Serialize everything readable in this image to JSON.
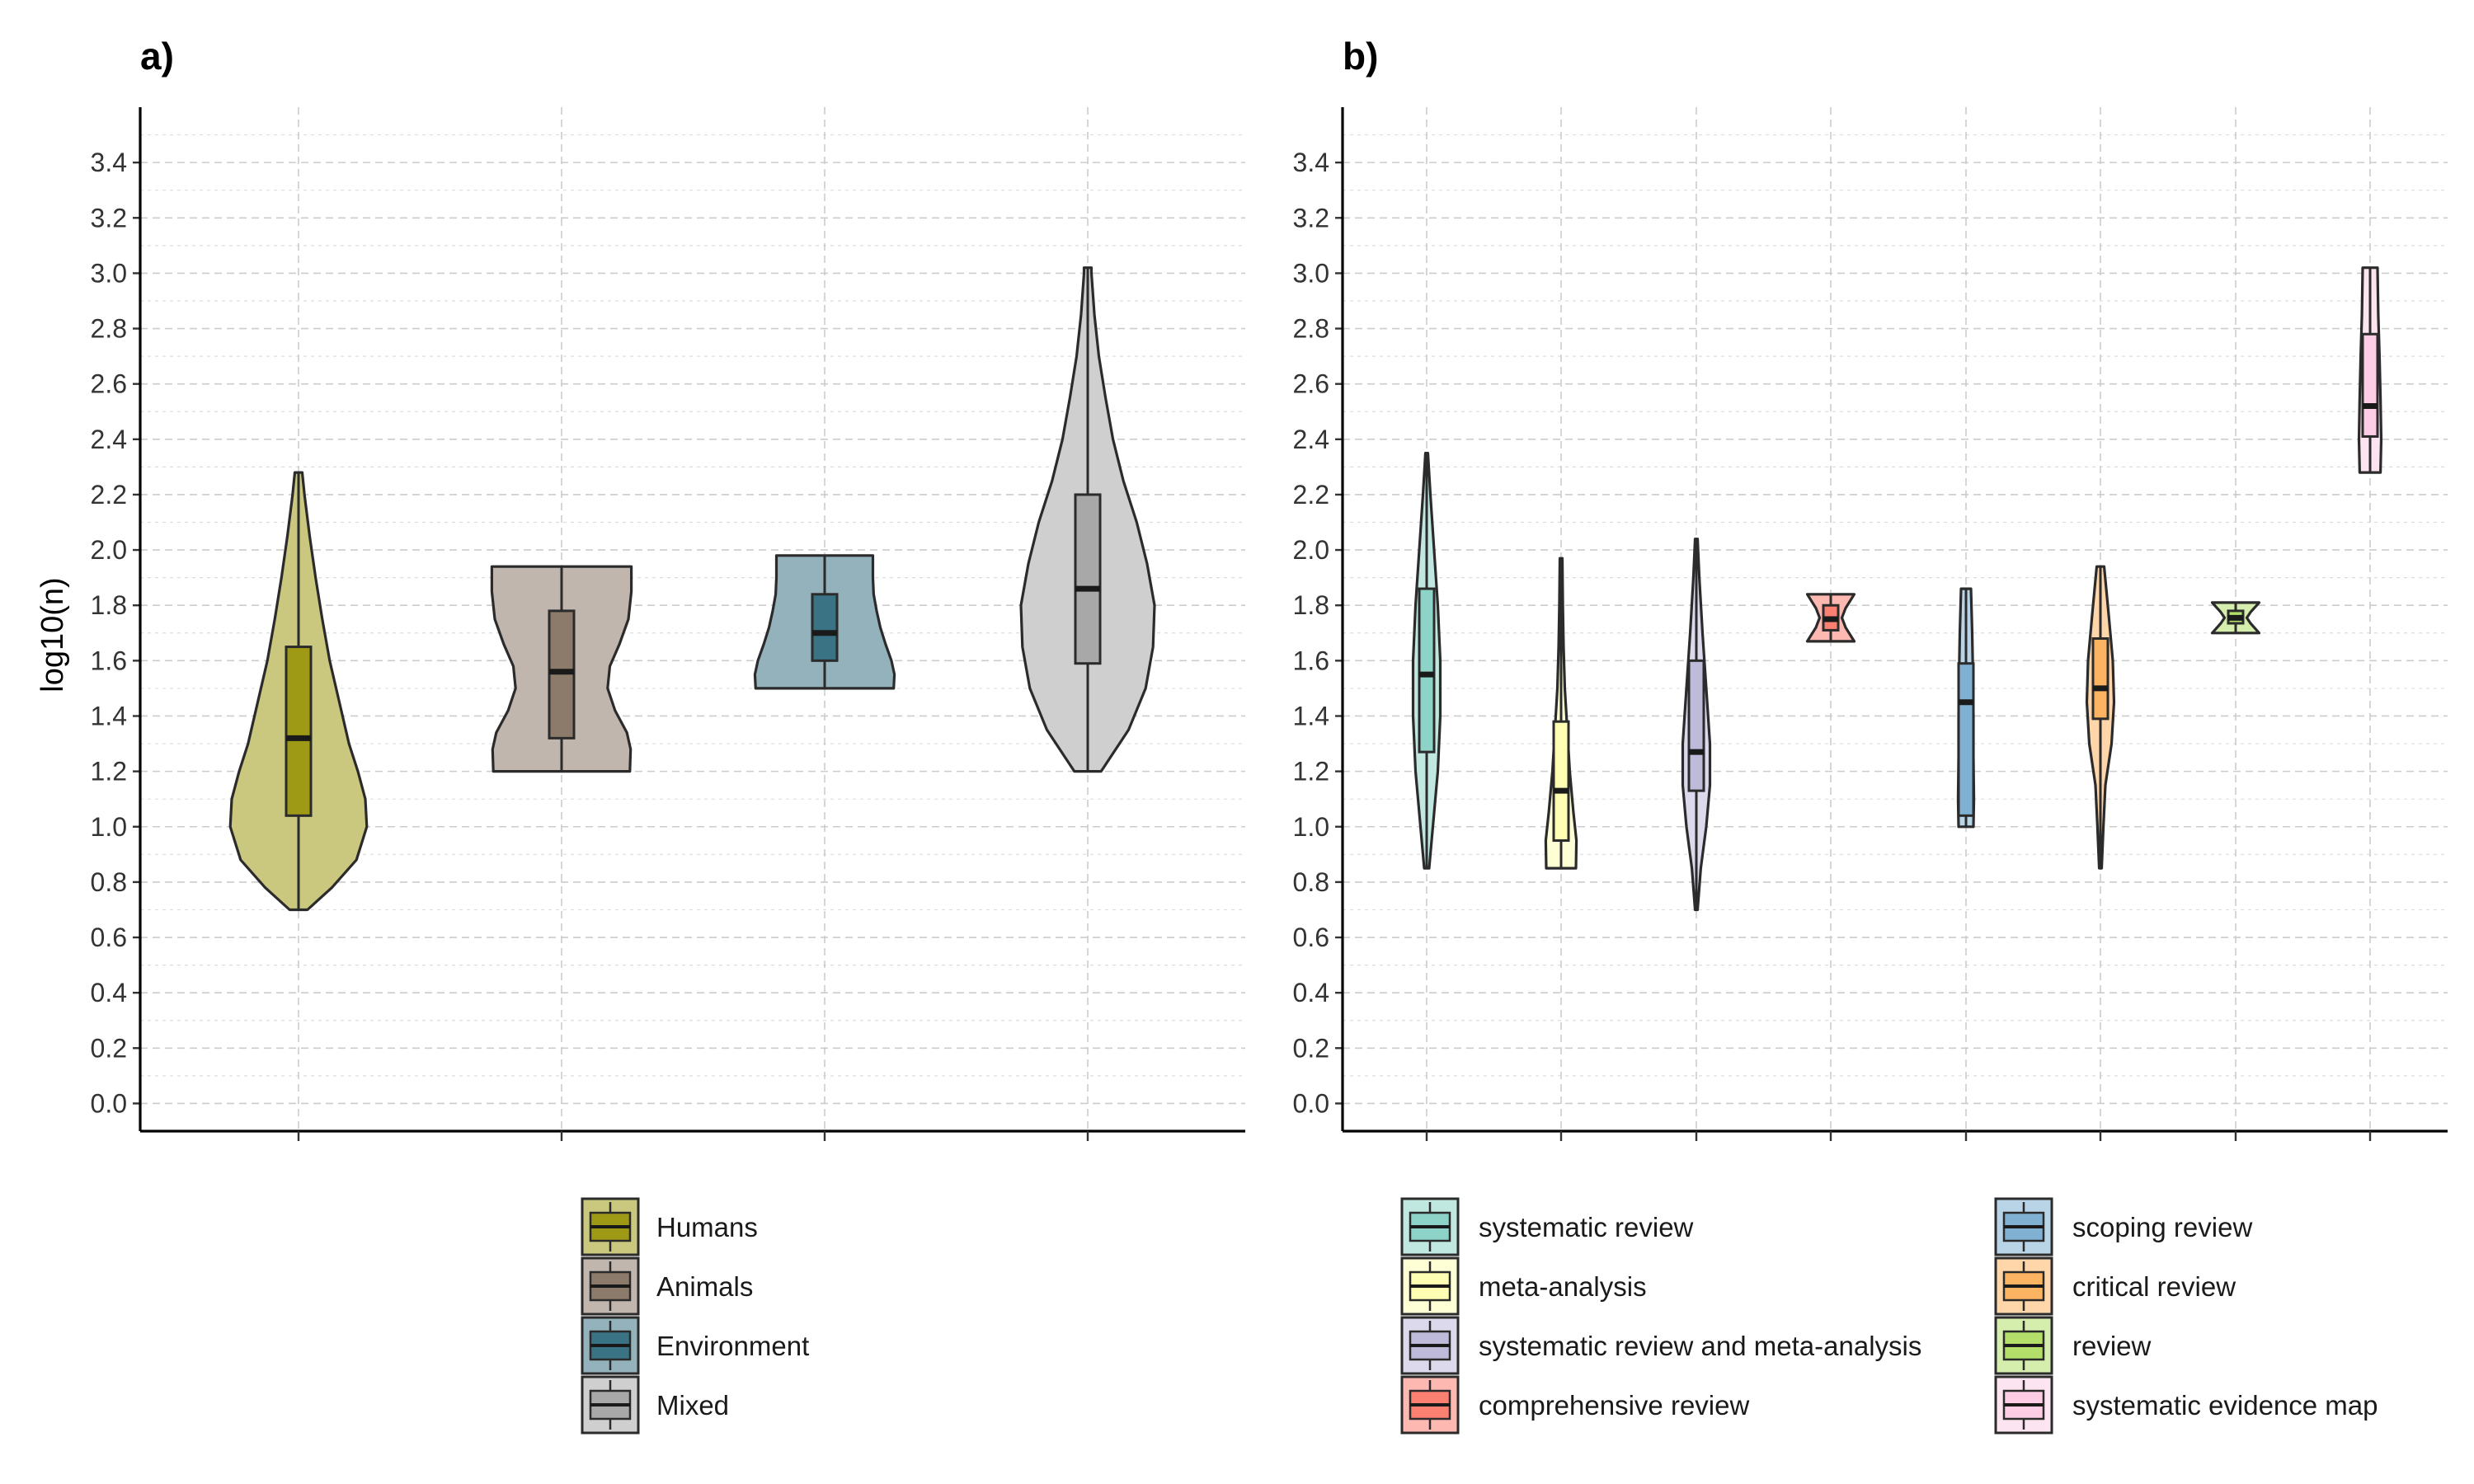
{
  "chart_data": [
    {
      "type": "violin",
      "panel_label": "a)",
      "ylabel": "log10(n)",
      "ylim": [
        -0.1,
        3.6
      ],
      "yticks": [
        "0.0",
        "0.2",
        "0.4",
        "0.6",
        "0.8",
        "1.0",
        "1.2",
        "1.4",
        "1.6",
        "1.8",
        "2.0",
        "2.2",
        "2.4",
        "2.6",
        "2.8",
        "3.0",
        "3.2",
        "3.4"
      ],
      "grid": true,
      "legend_position": "bottom",
      "series": [
        {
          "name": "Humans",
          "color": "#9E9A16",
          "min": 0.7,
          "q1": 1.04,
          "median": 1.32,
          "q3": 1.65,
          "max": 2.28,
          "density": [
            [
              0.7,
              0.12
            ],
            [
              0.78,
              0.45
            ],
            [
              0.88,
              0.78
            ],
            [
              1.0,
              0.92
            ],
            [
              1.1,
              0.9
            ],
            [
              1.2,
              0.8
            ],
            [
              1.3,
              0.68
            ],
            [
              1.45,
              0.55
            ],
            [
              1.6,
              0.42
            ],
            [
              1.75,
              0.32
            ],
            [
              1.9,
              0.23
            ],
            [
              2.05,
              0.15
            ],
            [
              2.2,
              0.08
            ],
            [
              2.28,
              0.05
            ]
          ]
        },
        {
          "name": "Animals",
          "color": "#8C7B6B",
          "min": 1.2,
          "q1": 1.32,
          "median": 1.56,
          "q3": 1.78,
          "max": 1.94,
          "density": [
            [
              1.2,
              0.92
            ],
            [
              1.28,
              0.93
            ],
            [
              1.34,
              0.88
            ],
            [
              1.42,
              0.72
            ],
            [
              1.5,
              0.62
            ],
            [
              1.58,
              0.65
            ],
            [
              1.66,
              0.78
            ],
            [
              1.75,
              0.9
            ],
            [
              1.85,
              0.94
            ],
            [
              1.94,
              0.94
            ]
          ]
        },
        {
          "name": "Environment",
          "color": "#3A7384",
          "min": 1.5,
          "q1": 1.6,
          "median": 1.7,
          "q3": 1.84,
          "max": 1.98,
          "density": [
            [
              1.5,
              0.93
            ],
            [
              1.55,
              0.94
            ],
            [
              1.6,
              0.9
            ],
            [
              1.66,
              0.82
            ],
            [
              1.72,
              0.75
            ],
            [
              1.78,
              0.7
            ],
            [
              1.84,
              0.66
            ],
            [
              1.9,
              0.65
            ],
            [
              1.96,
              0.65
            ],
            [
              1.98,
              0.65
            ]
          ]
        },
        {
          "name": "Mixed",
          "color": "#A8A8A8",
          "min": 1.2,
          "q1": 1.59,
          "median": 1.86,
          "q3": 2.2,
          "max": 3.02,
          "density": [
            [
              1.2,
              0.18
            ],
            [
              1.35,
              0.55
            ],
            [
              1.5,
              0.78
            ],
            [
              1.65,
              0.88
            ],
            [
              1.8,
              0.9
            ],
            [
              1.95,
              0.8
            ],
            [
              2.1,
              0.66
            ],
            [
              2.25,
              0.48
            ],
            [
              2.4,
              0.34
            ],
            [
              2.55,
              0.24
            ],
            [
              2.7,
              0.15
            ],
            [
              2.85,
              0.09
            ],
            [
              3.0,
              0.05
            ],
            [
              3.02,
              0.05
            ]
          ]
        }
      ]
    },
    {
      "type": "violin",
      "panel_label": "b)",
      "ylim": [
        -0.1,
        3.6
      ],
      "yticks": [
        "0.0",
        "0.2",
        "0.4",
        "0.6",
        "0.8",
        "1.0",
        "1.2",
        "1.4",
        "1.6",
        "1.8",
        "2.0",
        "2.2",
        "2.4",
        "2.6",
        "2.8",
        "3.0",
        "3.2",
        "3.4"
      ],
      "grid": true,
      "legend_position": "bottom",
      "series": [
        {
          "name": "systematic review",
          "color": "#8DD3C7",
          "min": 0.85,
          "q1": 1.27,
          "median": 1.55,
          "q3": 1.86,
          "max": 2.35,
          "density": [
            [
              0.85,
              0.1
            ],
            [
              1.0,
              0.25
            ],
            [
              1.2,
              0.45
            ],
            [
              1.4,
              0.55
            ],
            [
              1.6,
              0.55
            ],
            [
              1.8,
              0.45
            ],
            [
              2.0,
              0.3
            ],
            [
              2.2,
              0.15
            ],
            [
              2.35,
              0.05
            ]
          ]
        },
        {
          "name": "meta-analysis",
          "color": "#FFFFB3",
          "min": 0.85,
          "q1": 0.95,
          "median": 1.13,
          "q3": 1.38,
          "max": 1.97,
          "density": [
            [
              0.85,
              0.6
            ],
            [
              0.95,
              0.62
            ],
            [
              1.05,
              0.5
            ],
            [
              1.2,
              0.35
            ],
            [
              1.35,
              0.25
            ],
            [
              1.5,
              0.15
            ],
            [
              1.65,
              0.1
            ],
            [
              1.8,
              0.07
            ],
            [
              1.97,
              0.05
            ]
          ]
        },
        {
          "name": "systematic review and meta-analysis",
          "color": "#BEBADA",
          "min": 0.7,
          "q1": 1.13,
          "median": 1.27,
          "q3": 1.6,
          "max": 2.04,
          "density": [
            [
              0.7,
              0.05
            ],
            [
              0.85,
              0.18
            ],
            [
              1.0,
              0.4
            ],
            [
              1.15,
              0.55
            ],
            [
              1.3,
              0.55
            ],
            [
              1.5,
              0.4
            ],
            [
              1.7,
              0.25
            ],
            [
              1.9,
              0.12
            ],
            [
              2.04,
              0.05
            ]
          ]
        },
        {
          "name": "comprehensive review",
          "color": "#FB8072",
          "min": 1.67,
          "q1": 1.71,
          "median": 1.75,
          "q3": 1.8,
          "max": 1.84,
          "density": [
            [
              1.67,
              0.95
            ],
            [
              1.72,
              0.6
            ],
            [
              1.755,
              0.45
            ],
            [
              1.79,
              0.6
            ],
            [
              1.84,
              0.95
            ]
          ]
        },
        {
          "name": "scoping review",
          "color": "#80B1D3",
          "min": 1.0,
          "q1": 1.04,
          "median": 1.45,
          "q3": 1.59,
          "max": 1.86,
          "density": [
            [
              1.0,
              0.3
            ],
            [
              1.1,
              0.32
            ],
            [
              1.25,
              0.3
            ],
            [
              1.4,
              0.3
            ],
            [
              1.55,
              0.28
            ],
            [
              1.7,
              0.25
            ],
            [
              1.86,
              0.2
            ]
          ]
        },
        {
          "name": "critical review",
          "color": "#FDB462",
          "min": 0.85,
          "q1": 1.39,
          "median": 1.5,
          "q3": 1.68,
          "max": 1.94,
          "density": [
            [
              0.85,
              0.05
            ],
            [
              1.0,
              0.12
            ],
            [
              1.15,
              0.2
            ],
            [
              1.3,
              0.45
            ],
            [
              1.45,
              0.55
            ],
            [
              1.6,
              0.5
            ],
            [
              1.75,
              0.35
            ],
            [
              1.94,
              0.15
            ]
          ]
        },
        {
          "name": "review",
          "color": "#B3DE69",
          "min": 1.7,
          "q1": 1.735,
          "median": 1.755,
          "q3": 1.78,
          "max": 1.81,
          "density": [
            [
              1.7,
              0.95
            ],
            [
              1.735,
              0.6
            ],
            [
              1.755,
              0.45
            ],
            [
              1.775,
              0.6
            ],
            [
              1.81,
              0.95
            ]
          ]
        },
        {
          "name": "systematic evidence map",
          "color": "#FCCDE5",
          "min": 2.28,
          "q1": 2.41,
          "median": 2.52,
          "q3": 2.78,
          "max": 3.02,
          "density": [
            [
              2.28,
              0.42
            ],
            [
              2.4,
              0.45
            ],
            [
              2.55,
              0.42
            ],
            [
              2.7,
              0.38
            ],
            [
              2.85,
              0.33
            ],
            [
              3.02,
              0.3
            ]
          ]
        }
      ]
    }
  ]
}
